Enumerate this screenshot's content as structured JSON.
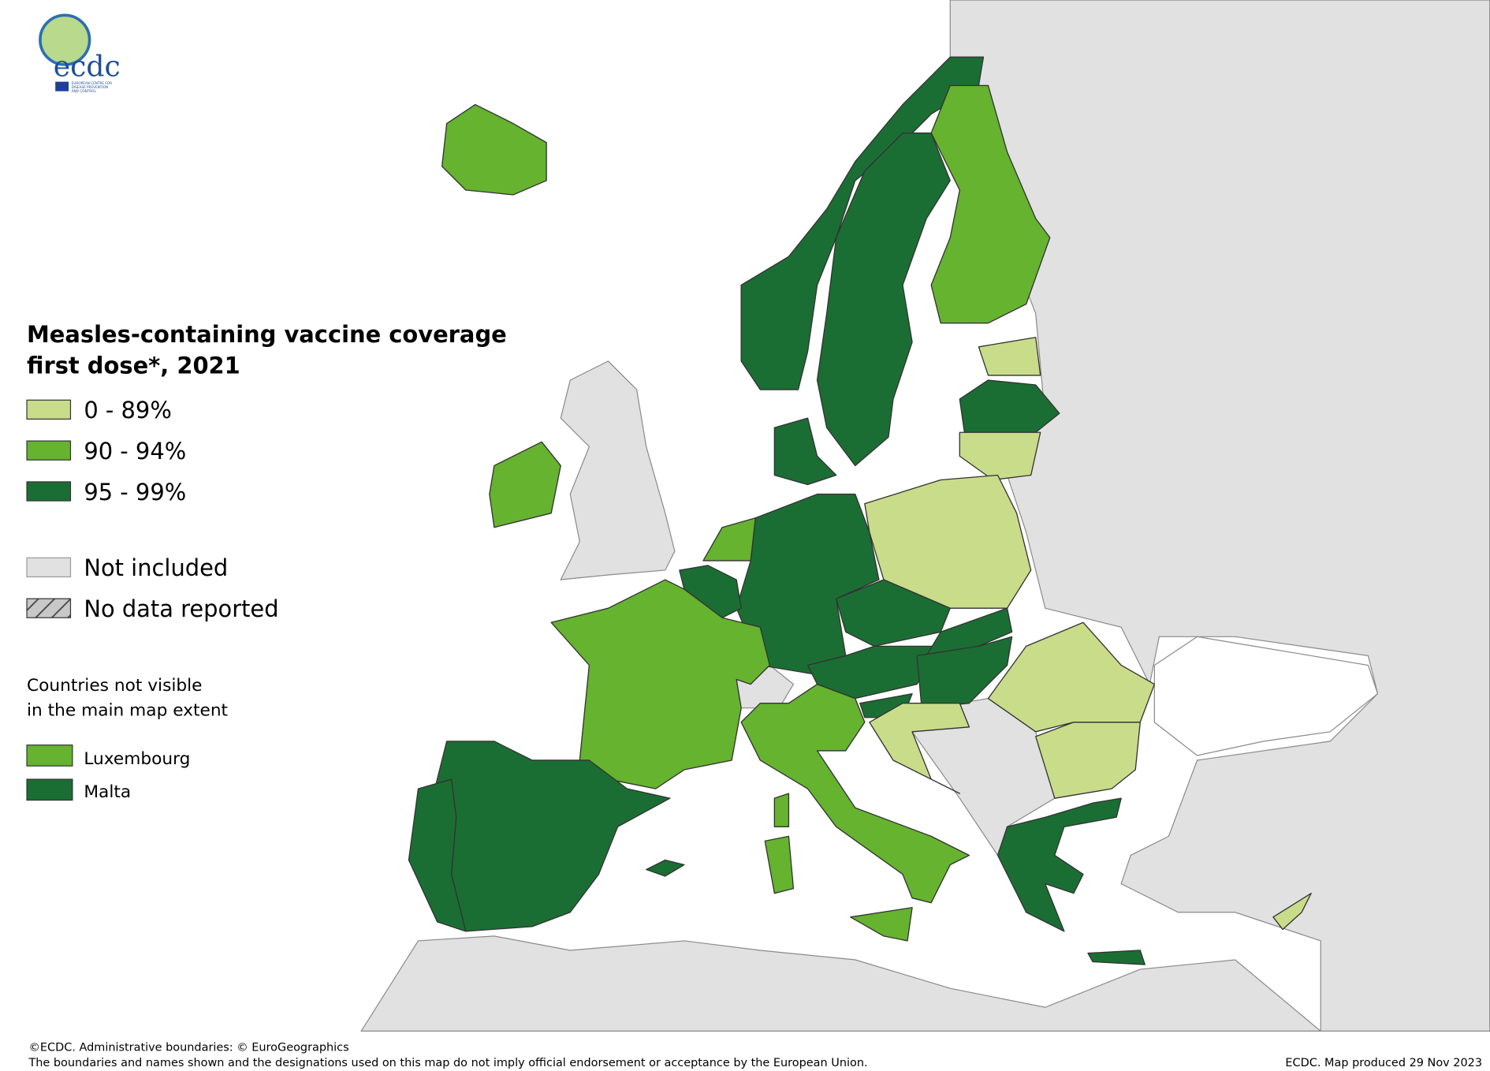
{
  "logo": {
    "text": "ecdc",
    "subtitle": [
      "EUROPEAN CENTRE FOR",
      "DISEASE PREVENTION",
      "AND CONTROL"
    ]
  },
  "legend": {
    "title": [
      "Measles-containing vaccine coverage",
      "first dose*, 2021"
    ],
    "items": [
      {
        "label": "0 - 89%",
        "color": "#c9dc8a"
      },
      {
        "label": "90 - 94%",
        "color": "#65b32e"
      },
      {
        "label": "95 - 99%",
        "color": "#1b6e33"
      },
      {
        "label": "Not included",
        "color": "#e1e1e1"
      },
      {
        "label": "No data reported",
        "color": "#c8c8c8"
      }
    ],
    "not_visible_title": [
      "Countries not visible",
      "in the main map extent"
    ],
    "not_visible": [
      "Luxembourg",
      "Malta"
    ]
  },
  "footer": {
    "left": [
      "©ECDC. Administrative boundaries: © EuroGeographics",
      "The boundaries and names shown and the designations used on this map do not imply official endorsement or acceptance by the European Union."
    ],
    "right": "ECDC. Map produced 29 Nov 2023"
  }
}
